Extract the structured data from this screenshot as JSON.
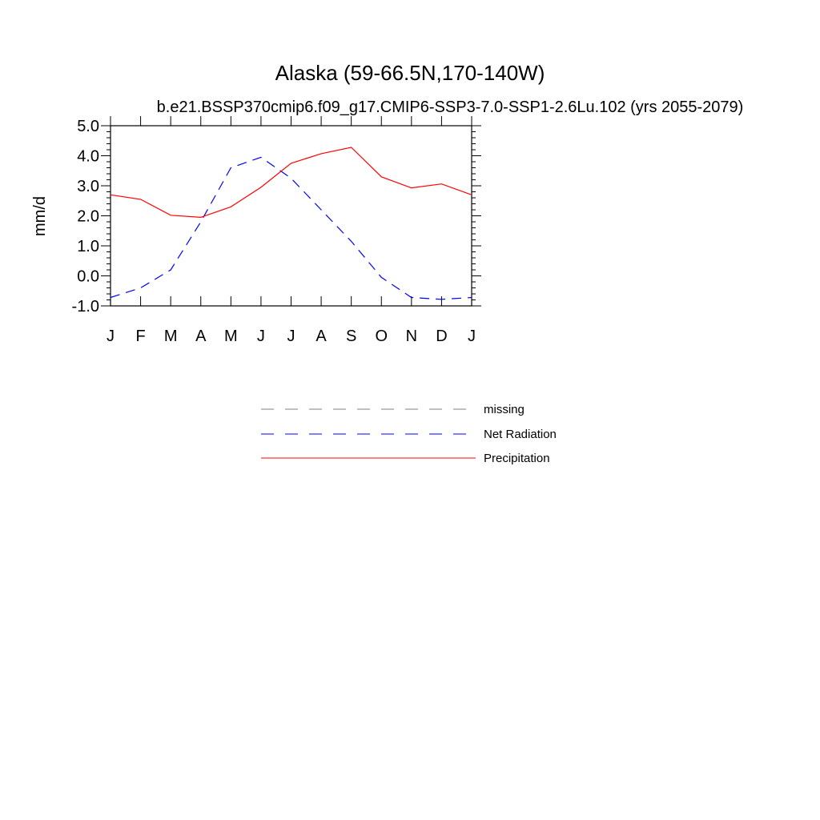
{
  "chart_data": {
    "type": "line",
    "title": "Alaska (59-66.5N,170-140W)",
    "subtitle": "b.e21.BSSP370cmip6.f09_g17.CMIP6-SSP3-7.0-SSP1-2.6Lu.102 (yrs 2055-2079)",
    "xlabel": "",
    "ylabel": "mm/d",
    "ylim": [
      -1.0,
      5.0
    ],
    "yticks": [
      "5.0",
      "4.0",
      "3.0",
      "2.0",
      "1.0",
      "0.0",
      "-1.0"
    ],
    "categories": [
      "J",
      "F",
      "M",
      "A",
      "M",
      "J",
      "J",
      "A",
      "S",
      "O",
      "N",
      "D",
      "J"
    ],
    "series": [
      {
        "name": "Net Radiation",
        "color": "#0000ff",
        "dash": "dashed",
        "values": [
          -0.72,
          -0.4,
          0.2,
          1.8,
          3.6,
          3.95,
          3.25,
          2.2,
          1.15,
          -0.05,
          -0.72,
          -0.78,
          -0.72
        ]
      },
      {
        "name": "Precipitation",
        "color": "#ff0000",
        "dash": "solid",
        "values": [
          2.7,
          2.55,
          2.02,
          1.95,
          2.3,
          2.95,
          3.75,
          4.07,
          4.28,
          3.3,
          2.93,
          3.06,
          2.7
        ]
      }
    ],
    "legend": {
      "placement": "bottom",
      "entries": [
        {
          "label": "missing",
          "color": "#808080",
          "dash": "dashed"
        },
        {
          "label": "Net Radiation",
          "color": "#0000ff",
          "dash": "dashed"
        },
        {
          "label": "Precipitation",
          "color": "#ff0000",
          "dash": "solid"
        }
      ]
    },
    "grid": false
  }
}
